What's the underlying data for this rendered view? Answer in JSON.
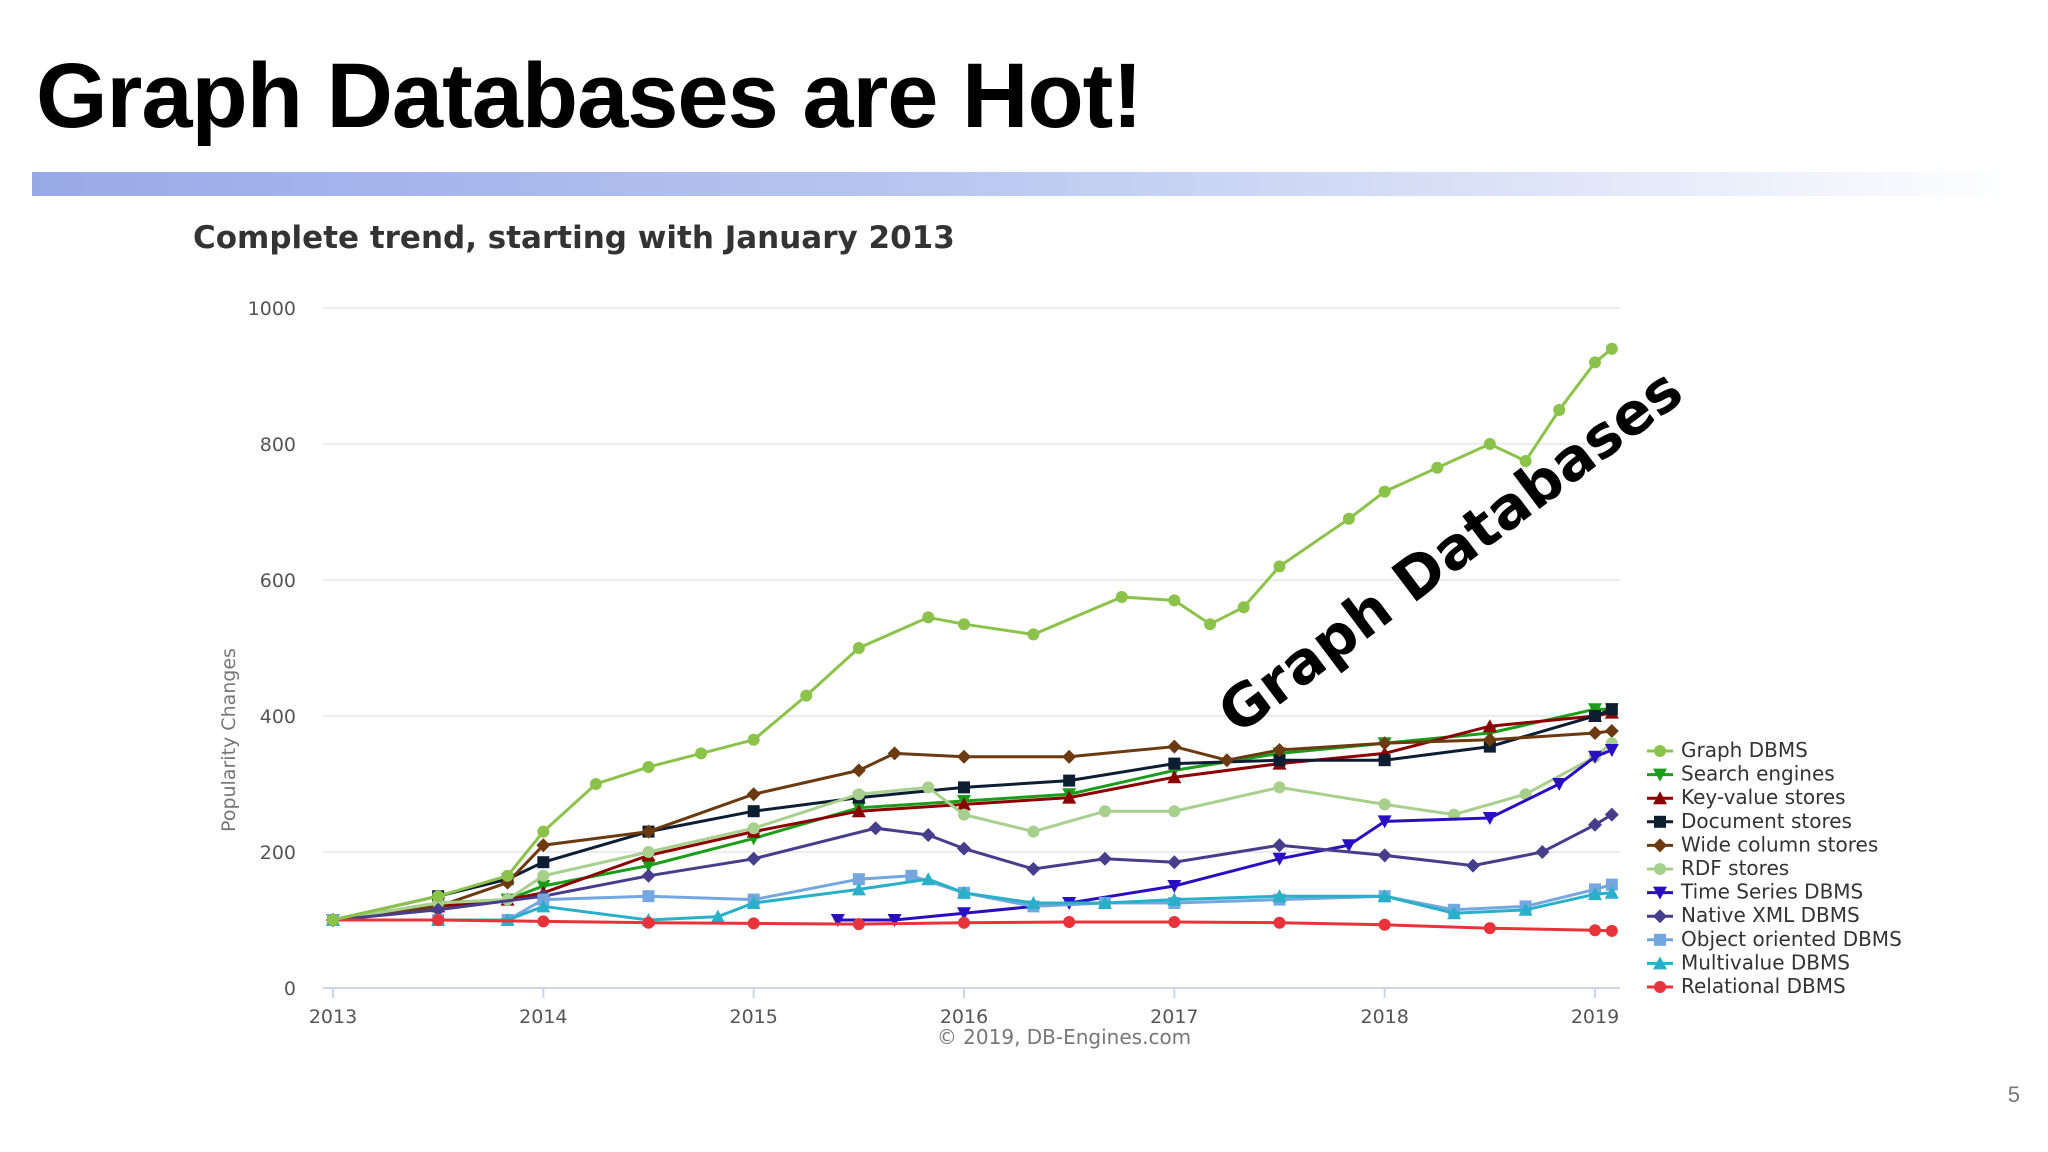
{
  "slide": {
    "title": "Graph Databases are Hot!",
    "page_number": "5"
  },
  "colors": {
    "title_bar_start": "#98a9e8",
    "title_bar_end": "#ffffff"
  },
  "chart_data": {
    "type": "line",
    "title": "Complete trend, starting with January 2013",
    "xlabel": "",
    "ylabel": "Popularity Changes",
    "credit": "© 2019, DB-Engines.com",
    "annotation": "Graph Databases",
    "xlim": [
      2013,
      2019.1
    ],
    "ylim": [
      0,
      1000
    ],
    "x_ticks": [
      "2013",
      "2014",
      "2015",
      "2016",
      "2017",
      "2018",
      "2019"
    ],
    "y_ticks": [
      "0",
      "200",
      "400",
      "600",
      "800",
      "1000"
    ],
    "grid": "horizontal",
    "legend_position": "right",
    "series": [
      {
        "name": "Graph DBMS",
        "color": "#8bc34a",
        "marker": "circle",
        "points": [
          [
            2013,
            100
          ],
          [
            2013.5,
            135
          ],
          [
            2013.83,
            165
          ],
          [
            2014,
            230
          ],
          [
            2014.25,
            300
          ],
          [
            2014.5,
            325
          ],
          [
            2014.75,
            345
          ],
          [
            2015,
            365
          ],
          [
            2015.25,
            430
          ],
          [
            2015.5,
            500
          ],
          [
            2015.83,
            545
          ],
          [
            2016,
            535
          ],
          [
            2016.33,
            520
          ],
          [
            2016.75,
            575
          ],
          [
            2017,
            570
          ],
          [
            2017.17,
            535
          ],
          [
            2017.33,
            560
          ],
          [
            2017.5,
            620
          ],
          [
            2017.83,
            690
          ],
          [
            2018,
            730
          ],
          [
            2018.25,
            765
          ],
          [
            2018.5,
            800
          ],
          [
            2018.67,
            775
          ],
          [
            2018.83,
            850
          ],
          [
            2019,
            920
          ],
          [
            2019.08,
            940
          ]
        ]
      },
      {
        "name": "Search engines",
        "color": "#1a9e1a",
        "marker": "triangle-down",
        "points": [
          [
            2013,
            100
          ],
          [
            2013.5,
            125
          ],
          [
            2013.83,
            130
          ],
          [
            2014,
            150
          ],
          [
            2014.5,
            180
          ],
          [
            2015,
            220
          ],
          [
            2015.5,
            265
          ],
          [
            2016,
            275
          ],
          [
            2016.5,
            285
          ],
          [
            2017,
            320
          ],
          [
            2017.5,
            345
          ],
          [
            2018,
            360
          ],
          [
            2018.5,
            375
          ],
          [
            2019,
            410
          ],
          [
            2019.08,
            410
          ]
        ]
      },
      {
        "name": "Key-value stores",
        "color": "#8b0000",
        "marker": "triangle-up",
        "points": [
          [
            2013,
            100
          ],
          [
            2013.5,
            120
          ],
          [
            2013.83,
            130
          ],
          [
            2014,
            140
          ],
          [
            2014.5,
            195
          ],
          [
            2015,
            230
          ],
          [
            2015.5,
            260
          ],
          [
            2016,
            270
          ],
          [
            2016.5,
            280
          ],
          [
            2017,
            310
          ],
          [
            2017.5,
            330
          ],
          [
            2018,
            345
          ],
          [
            2018.5,
            385
          ],
          [
            2019,
            400
          ],
          [
            2019.08,
            405
          ]
        ]
      },
      {
        "name": "Document stores",
        "color": "#0d1e33",
        "marker": "square",
        "points": [
          [
            2013,
            100
          ],
          [
            2013.5,
            135
          ],
          [
            2013.83,
            160
          ],
          [
            2014,
            185
          ],
          [
            2014.5,
            230
          ],
          [
            2015,
            260
          ],
          [
            2015.5,
            280
          ],
          [
            2016,
            295
          ],
          [
            2016.5,
            305
          ],
          [
            2017,
            330
          ],
          [
            2017.5,
            335
          ],
          [
            2018,
            335
          ],
          [
            2018.5,
            355
          ],
          [
            2019,
            400
          ],
          [
            2019.08,
            410
          ]
        ]
      },
      {
        "name": "Wide column stores",
        "color": "#6b3a10",
        "marker": "diamond",
        "points": [
          [
            2013,
            100
          ],
          [
            2013.5,
            120
          ],
          [
            2013.83,
            155
          ],
          [
            2014,
            210
          ],
          [
            2014.5,
            230
          ],
          [
            2015,
            285
          ],
          [
            2015.5,
            320
          ],
          [
            2015.67,
            345
          ],
          [
            2016,
            340
          ],
          [
            2016.5,
            340
          ],
          [
            2017,
            355
          ],
          [
            2017.25,
            335
          ],
          [
            2017.5,
            350
          ],
          [
            2018,
            360
          ],
          [
            2018.5,
            365
          ],
          [
            2019,
            375
          ],
          [
            2019.08,
            378
          ]
        ]
      },
      {
        "name": "RDF stores",
        "color": "#a8d08d",
        "marker": "circle",
        "points": [
          [
            2013,
            100
          ],
          [
            2013.5,
            125
          ],
          [
            2013.83,
            130
          ],
          [
            2014,
            165
          ],
          [
            2014.5,
            200
          ],
          [
            2015,
            235
          ],
          [
            2015.5,
            285
          ],
          [
            2015.83,
            295
          ],
          [
            2016,
            255
          ],
          [
            2016.33,
            230
          ],
          [
            2016.67,
            260
          ],
          [
            2017,
            260
          ],
          [
            2017.5,
            295
          ],
          [
            2018,
            270
          ],
          [
            2018.33,
            255
          ],
          [
            2018.67,
            285
          ],
          [
            2019,
            340
          ],
          [
            2019.08,
            360
          ]
        ]
      },
      {
        "name": "Time Series DBMS",
        "color": "#2a0fc2",
        "marker": "triangle-down",
        "points": [
          [
            2015.4,
            100
          ],
          [
            2015.67,
            100
          ],
          [
            2016,
            110
          ],
          [
            2016.5,
            125
          ],
          [
            2017,
            150
          ],
          [
            2017.5,
            190
          ],
          [
            2017.83,
            210
          ],
          [
            2018,
            245
          ],
          [
            2018.5,
            250
          ],
          [
            2018.83,
            300
          ],
          [
            2019,
            340
          ],
          [
            2019.08,
            350
          ]
        ]
      },
      {
        "name": "Native XML DBMS",
        "color": "#483d8b",
        "marker": "diamond",
        "points": [
          [
            2013,
            100
          ],
          [
            2013.5,
            115
          ],
          [
            2014,
            135
          ],
          [
            2014.5,
            165
          ],
          [
            2015,
            190
          ],
          [
            2015.58,
            235
          ],
          [
            2015.83,
            225
          ],
          [
            2016,
            205
          ],
          [
            2016.33,
            175
          ],
          [
            2016.67,
            190
          ],
          [
            2017,
            185
          ],
          [
            2017.5,
            210
          ],
          [
            2018,
            195
          ],
          [
            2018.42,
            180
          ],
          [
            2018.75,
            200
          ],
          [
            2019,
            240
          ],
          [
            2019.08,
            255
          ]
        ]
      },
      {
        "name": "Object oriented DBMS",
        "color": "#74a7e0",
        "marker": "square",
        "points": [
          [
            2013,
            100
          ],
          [
            2013.5,
            100
          ],
          [
            2013.83,
            100
          ],
          [
            2014,
            130
          ],
          [
            2014.5,
            135
          ],
          [
            2015,
            130
          ],
          [
            2015.5,
            160
          ],
          [
            2015.75,
            165
          ],
          [
            2016,
            140
          ],
          [
            2016.33,
            120
          ],
          [
            2016.67,
            125
          ],
          [
            2017,
            125
          ],
          [
            2017.5,
            130
          ],
          [
            2018,
            135
          ],
          [
            2018.33,
            115
          ],
          [
            2018.67,
            120
          ],
          [
            2019,
            145
          ],
          [
            2019.08,
            152
          ]
        ]
      },
      {
        "name": "Multivalue DBMS",
        "color": "#28b0c8",
        "marker": "triangle-up",
        "points": [
          [
            2013,
            100
          ],
          [
            2013.5,
            100
          ],
          [
            2013.83,
            100
          ],
          [
            2014,
            120
          ],
          [
            2014.5,
            100
          ],
          [
            2014.83,
            105
          ],
          [
            2015,
            125
          ],
          [
            2015.5,
            145
          ],
          [
            2015.83,
            160
          ],
          [
            2016,
            140
          ],
          [
            2016.33,
            125
          ],
          [
            2016.67,
            125
          ],
          [
            2017,
            130
          ],
          [
            2017.5,
            135
          ],
          [
            2018,
            135
          ],
          [
            2018.33,
            110
          ],
          [
            2018.67,
            115
          ],
          [
            2019,
            138
          ],
          [
            2019.08,
            140
          ]
        ]
      },
      {
        "name": "Relational DBMS",
        "color": "#e8333a",
        "marker": "circle",
        "points": [
          [
            2013,
            100
          ],
          [
            2013.5,
            100
          ],
          [
            2014,
            98
          ],
          [
            2014.5,
            96
          ],
          [
            2015,
            95
          ],
          [
            2015.5,
            94
          ],
          [
            2016,
            96
          ],
          [
            2016.5,
            97
          ],
          [
            2017,
            97
          ],
          [
            2017.5,
            96
          ],
          [
            2018,
            93
          ],
          [
            2018.5,
            88
          ],
          [
            2019,
            85
          ],
          [
            2019.08,
            84
          ]
        ]
      }
    ]
  }
}
